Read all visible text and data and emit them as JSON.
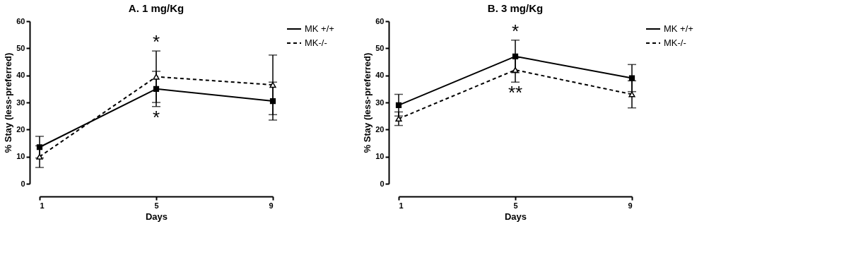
{
  "chart_data": [
    {
      "type": "line",
      "title": "A. 1 mg/Kg",
      "xlabel": "Days",
      "ylabel": "% Stay (less-preferred)",
      "x": [
        1,
        5,
        9
      ],
      "xlim": [
        1,
        9
      ],
      "xticks": [
        1,
        5,
        9
      ],
      "ylim": [
        0,
        60
      ],
      "yticks": [
        0,
        10,
        20,
        30,
        40,
        50,
        60
      ],
      "legend": "top right",
      "grid": false,
      "series": [
        {
          "name": "MK +/+",
          "color": "#000000",
          "values": [
            13.5,
            35,
            30.5
          ],
          "errors": [
            4,
            6.5,
            7
          ],
          "marker": "square",
          "line_style": "solid"
        },
        {
          "name": "MK-/-",
          "color": "#000000",
          "values": [
            10,
            39.5,
            36.5
          ],
          "errors": [
            4,
            9.5,
            11
          ],
          "marker": "triangle",
          "line_style": "dashed"
        }
      ],
      "annotations": [
        "*",
        "*"
      ]
    },
    {
      "type": "line",
      "title": "B. 3 mg/Kg",
      "xlabel": "Days",
      "ylabel": "% Stay (less-preferred)",
      "x": [
        1,
        5,
        9
      ],
      "xlim": [
        1,
        9
      ],
      "xticks": [
        1,
        5,
        9
      ],
      "ylim": [
        0,
        60
      ],
      "yticks": [
        0,
        10,
        20,
        30,
        40,
        50,
        60
      ],
      "legend": "top right",
      "grid": false,
      "series": [
        {
          "name": "MK +/+",
          "color": "#000000",
          "values": [
            29,
            47,
            39
          ],
          "errors": [
            4,
            6,
            5
          ],
          "marker": "square",
          "line_style": "solid"
        },
        {
          "name": "MK-/-",
          "color": "#000000",
          "values": [
            24,
            42,
            33
          ],
          "errors": [
            2.5,
            4.5,
            5
          ],
          "marker": "triangle",
          "line_style": "dashed"
        }
      ],
      "annotations": [
        "*",
        "**"
      ]
    }
  ]
}
